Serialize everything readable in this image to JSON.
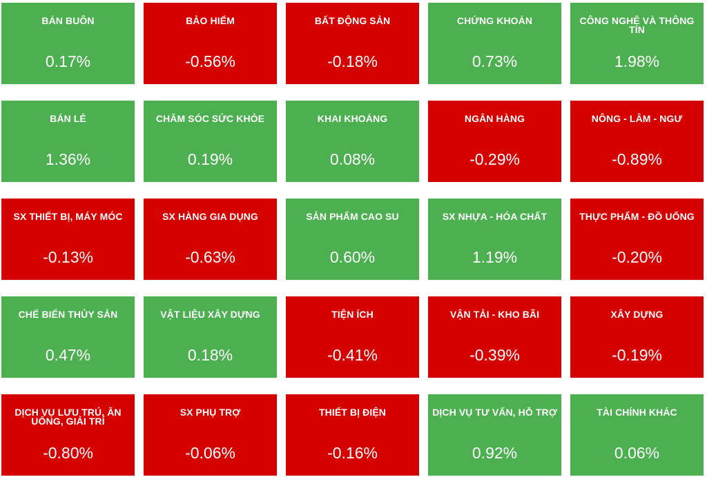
{
  "colors": {
    "up": "#4caf50",
    "down": "#d50000"
  },
  "sectors": [
    {
      "name": "BÁN BUÔN",
      "change": "0.17%",
      "value": 0.17
    },
    {
      "name": "BẢO HIỂM",
      "change": "-0.56%",
      "value": -0.56
    },
    {
      "name": "BẤT ĐỘNG SẢN",
      "change": "-0.18%",
      "value": -0.18
    },
    {
      "name": "CHỨNG KHOÁN",
      "change": "0.73%",
      "value": 0.73
    },
    {
      "name": "CÔNG NGHỆ VÀ THÔNG TIN",
      "change": "1.98%",
      "value": 1.98
    },
    {
      "name": "BÁN LẺ",
      "change": "1.36%",
      "value": 1.36
    },
    {
      "name": "CHĂM SÓC SỨC KHỎE",
      "change": "0.19%",
      "value": 0.19
    },
    {
      "name": "KHAI KHOÁNG",
      "change": "0.08%",
      "value": 0.08
    },
    {
      "name": "NGÂN HÀNG",
      "change": "-0.29%",
      "value": -0.29
    },
    {
      "name": "NÔNG - LÂM - NGƯ",
      "change": "-0.89%",
      "value": -0.89
    },
    {
      "name": "SX THIẾT BỊ, MÁY MÓC",
      "change": "-0.13%",
      "value": -0.13
    },
    {
      "name": "SX HÀNG GIA DỤNG",
      "change": "-0.63%",
      "value": -0.63
    },
    {
      "name": "SẢN PHẨM CAO SU",
      "change": "0.60%",
      "value": 0.6
    },
    {
      "name": "SX NHỰA - HÓA CHẤT",
      "change": "1.19%",
      "value": 1.19
    },
    {
      "name": "THỰC PHẨM - ĐỒ UỐNG",
      "change": "-0.20%",
      "value": -0.2
    },
    {
      "name": "CHẾ BIẾN THỦY SẢN",
      "change": "0.47%",
      "value": 0.47
    },
    {
      "name": "VẬT LIỆU XÂY DỰNG",
      "change": "0.18%",
      "value": 0.18
    },
    {
      "name": "TIỆN ÍCH",
      "change": "-0.41%",
      "value": -0.41
    },
    {
      "name": "VẬN TẢI - KHO BÃI",
      "change": "-0.39%",
      "value": -0.39
    },
    {
      "name": "XÂY DỰNG",
      "change": "-0.19%",
      "value": -0.19
    },
    {
      "name": "DỊCH VỤ LƯU TRÚ, ĂN UỐNG, GIẢI TRÍ",
      "change": "-0.80%",
      "value": -0.8
    },
    {
      "name": "SX PHỤ TRỢ",
      "change": "-0.06%",
      "value": -0.06
    },
    {
      "name": "THIẾT BỊ ĐIỆN",
      "change": "-0.16%",
      "value": -0.16
    },
    {
      "name": "DỊCH VỤ TƯ VẤN, HỖ TRỢ",
      "change": "0.92%",
      "value": 0.92
    },
    {
      "name": "TÀI CHÍNH KHÁC",
      "change": "0.06%",
      "value": 0.06
    }
  ]
}
